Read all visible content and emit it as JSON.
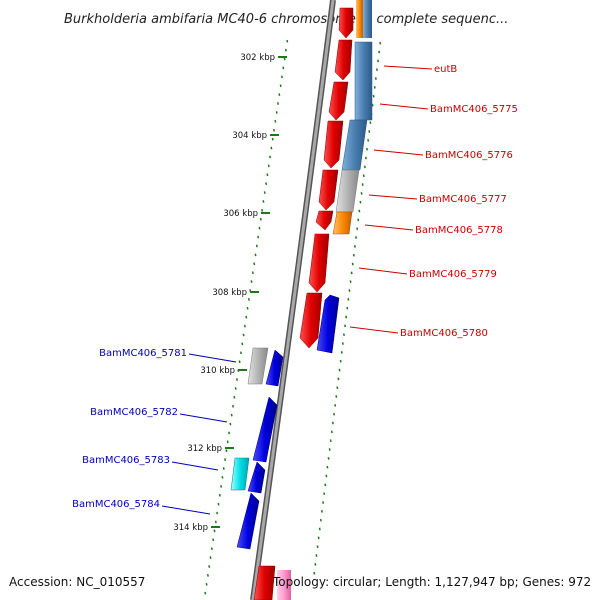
{
  "title": "Burkholderia ambifaria MC40-6 chromosome 3, complete sequenc...",
  "footer": {
    "accession": "Accession: NC_010557",
    "summary": "Topology: circular; Length: 1,127,947 bp; Genes: 972"
  },
  "scale_ticks": [
    "302 kbp",
    "304 kbp",
    "306 kbp",
    "308 kbp",
    "310 kbp",
    "312 kbp",
    "314 kbp"
  ],
  "genes_right": [
    "eutB",
    "BamMC406_5775",
    "BamMC406_5776",
    "BamMC406_5777",
    "BamMC406_5778",
    "BamMC406_5779",
    "BamMC406_5780"
  ],
  "genes_left": [
    "BamMC406_5781",
    "BamMC406_5782",
    "BamMC406_5783",
    "BamMC406_5784"
  ],
  "colors": {
    "backbone": "#8a8a8a",
    "red_feature": "#e00000",
    "blue_feature": "#0000dd",
    "steelblue_feature": "#4a7fb0",
    "gray_feature": "#b4b4b4",
    "orange_feature": "#ff8a00",
    "cyan_feature": "#00e0e8",
    "pink_feature": "#ff9ccf",
    "tick_green": "#1a7a1a",
    "right_label": "#cc0000",
    "left_label": "#0000bb"
  }
}
